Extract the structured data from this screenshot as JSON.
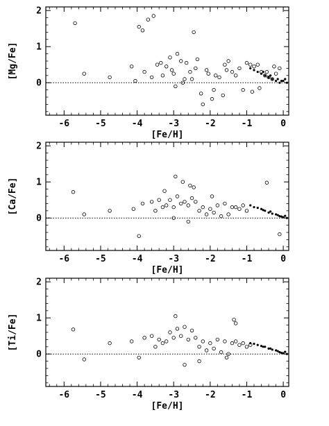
{
  "chart_data": [
    {
      "type": "scatter",
      "xlabel": "[Fe/H]",
      "ylabel": "[Mg/Fe]",
      "xlim": [
        -6.5,
        0.15
      ],
      "ylim": [
        -0.9,
        2.1
      ],
      "xticks": [
        -6,
        -5,
        -4,
        -3,
        -2,
        -1,
        0
      ],
      "yticks": [
        0,
        1,
        2
      ],
      "reference_line": {
        "y": 0,
        "x_start": -6.5,
        "x_end": 0.15,
        "style": "dotted"
      },
      "series": [
        {
          "marker": "open-circle",
          "x": [
            -5.7,
            -5.45,
            -4.75,
            -4.15,
            -3.95,
            -3.85,
            -3.7,
            -3.55,
            -3.3,
            -3.05,
            -2.8,
            -2.55,
            -3.45,
            -3.2,
            -3.0,
            -2.7,
            -2.4,
            -2.1,
            -1.85,
            -1.6,
            -1.4,
            -1.2,
            -3.6,
            -3.35,
            -3.1,
            -2.9,
            -2.65,
            -2.35,
            -2.05,
            -1.75,
            -1.55,
            -1.3,
            -1.1,
            -2.95,
            -2.75,
            -2.5,
            -2.25,
            -1.95,
            -1.65,
            -2.45,
            -1.5,
            -1.0,
            -0.9,
            -0.8,
            -0.7,
            -0.6,
            -0.5,
            -0.4,
            -0.3,
            -0.2,
            -0.85,
            -0.65,
            -0.45,
            -0.25,
            -0.1,
            -2.2,
            -1.9,
            -3.8,
            -4.05
          ],
          "y": [
            1.65,
            0.25,
            0.15,
            0.45,
            1.55,
            1.45,
            1.75,
            1.85,
            0.2,
            0.35,
            0.6,
            0.3,
            0.5,
            0.45,
            0.25,
            0.1,
            0.4,
            0.35,
            0.2,
            0.5,
            0.3,
            0.4,
            0.15,
            0.55,
            0.7,
            0.8,
            0.55,
            0.65,
            0.25,
            0.15,
            0.35,
            0.2,
            -0.2,
            -0.1,
            0.0,
            0.1,
            -0.3,
            -0.45,
            -0.35,
            1.4,
            0.6,
            0.55,
            0.5,
            0.45,
            0.5,
            0.3,
            0.2,
            0.15,
            0.1,
            0.25,
            -0.25,
            -0.15,
            0.3,
            0.45,
            0.4,
            -0.6,
            -0.2,
            0.3,
            0.05
          ]
        },
        {
          "marker": "filled-dot",
          "x": [
            -0.9,
            -0.8,
            -0.7,
            -0.6,
            -0.5,
            -0.4,
            -0.3,
            -0.2,
            -0.1,
            0.0,
            0.1,
            -0.55,
            -0.35,
            -0.15,
            -0.05,
            0.05
          ],
          "y": [
            0.4,
            0.35,
            0.3,
            0.25,
            0.2,
            0.15,
            0.1,
            0.05,
            0.0,
            0.05,
            0.0,
            0.3,
            0.2,
            0.1,
            0.05,
            0.1
          ]
        }
      ]
    },
    {
      "type": "scatter",
      "xlabel": "[Fe/H]",
      "ylabel": "[Ca/Fe]",
      "xlim": [
        -6.5,
        0.15
      ],
      "ylim": [
        -0.9,
        2.1
      ],
      "xticks": [
        -6,
        -5,
        -4,
        -3,
        -2,
        -1,
        0
      ],
      "yticks": [
        0,
        1,
        2
      ],
      "reference_line": {
        "y": 0,
        "x_start": -6.5,
        "x_end": 0.15,
        "style": "dotted"
      },
      "series": [
        {
          "marker": "open-circle",
          "x": [
            -5.75,
            -5.45,
            -4.75,
            -4.1,
            -3.95,
            -3.85,
            -3.6,
            -3.4,
            -3.2,
            -3.0,
            -2.8,
            -2.6,
            -2.4,
            -2.2,
            -2.0,
            -1.8,
            -1.6,
            -1.4,
            -1.2,
            -1.0,
            -3.5,
            -3.3,
            -3.1,
            -2.9,
            -2.7,
            -2.5,
            -2.3,
            -2.1,
            -1.9,
            -1.7,
            -1.5,
            -1.3,
            -1.1,
            -2.95,
            -2.75,
            -2.55,
            -2.45,
            -0.45,
            -0.1,
            -3.0,
            -2.6,
            -3.25,
            -1.95
          ],
          "y": [
            0.72,
            0.1,
            0.2,
            0.25,
            -0.5,
            0.4,
            0.45,
            0.5,
            0.35,
            0.3,
            0.4,
            0.35,
            0.45,
            0.3,
            0.25,
            0.35,
            0.4,
            0.3,
            0.25,
            0.2,
            0.2,
            0.3,
            0.5,
            0.6,
            0.45,
            0.55,
            0.2,
            0.1,
            0.15,
            0.05,
            0.1,
            0.3,
            0.35,
            1.15,
            1.0,
            0.9,
            0.85,
            0.98,
            -0.45,
            0.0,
            -0.1,
            0.75,
            0.6
          ]
        },
        {
          "marker": "filled-dot",
          "x": [
            -0.9,
            -0.8,
            -0.7,
            -0.6,
            -0.5,
            -0.4,
            -0.3,
            -0.2,
            -0.1,
            0.0,
            0.1,
            -0.55,
            -0.35,
            -0.15,
            -0.05,
            0.05
          ],
          "y": [
            0.35,
            0.3,
            0.28,
            0.25,
            0.2,
            0.15,
            0.12,
            0.1,
            0.05,
            0.02,
            0.0,
            0.22,
            0.18,
            0.08,
            0.04,
            0.06
          ]
        }
      ]
    },
    {
      "type": "scatter",
      "xlabel": "[Fe/H]",
      "ylabel": "[Ti/Fe]",
      "xlim": [
        -6.5,
        0.15
      ],
      "ylim": [
        -0.9,
        2.1
      ],
      "xticks": [
        -6,
        -5,
        -4,
        -3,
        -2,
        -1,
        0
      ],
      "yticks": [
        0,
        1,
        2
      ],
      "reference_line": {
        "y": 0,
        "x_start": -6.5,
        "x_end": 0.15,
        "style": "dotted"
      },
      "series": [
        {
          "marker": "open-circle",
          "x": [
            -5.75,
            -5.45,
            -4.75,
            -4.15,
            -3.95,
            -3.8,
            -3.6,
            -3.4,
            -3.2,
            -3.0,
            -2.8,
            -2.6,
            -2.4,
            -2.2,
            -2.0,
            -1.8,
            -1.6,
            -1.4,
            -1.2,
            -1.0,
            -3.5,
            -3.3,
            -3.1,
            -2.9,
            -2.7,
            -2.5,
            -2.3,
            -2.1,
            -1.9,
            -1.7,
            -1.5,
            -1.3,
            -1.1,
            -2.95,
            -1.35,
            -1.3,
            -2.7,
            -2.3,
            -1.55,
            -0.9
          ],
          "y": [
            0.68,
            -0.15,
            0.3,
            0.35,
            -0.1,
            0.45,
            0.5,
            0.4,
            0.35,
            0.45,
            0.5,
            0.4,
            0.45,
            0.35,
            0.3,
            0.4,
            0.35,
            0.3,
            0.25,
            0.2,
            0.2,
            0.3,
            0.6,
            0.7,
            0.75,
            0.65,
            0.2,
            0.1,
            0.15,
            0.05,
            0.0,
            0.35,
            0.3,
            1.05,
            0.95,
            0.85,
            -0.3,
            -0.2,
            -0.1,
            0.25
          ]
        },
        {
          "marker": "filled-dot",
          "x": [
            -0.9,
            -0.8,
            -0.7,
            -0.6,
            -0.5,
            -0.4,
            -0.3,
            -0.2,
            -0.1,
            0.0,
            0.1,
            -0.55,
            -0.35,
            -0.15,
            -0.05,
            0.05
          ],
          "y": [
            0.3,
            0.28,
            0.25,
            0.22,
            0.2,
            0.15,
            0.12,
            0.1,
            0.05,
            0.02,
            0.0,
            0.2,
            0.15,
            0.08,
            0.03,
            0.06
          ]
        }
      ]
    }
  ]
}
